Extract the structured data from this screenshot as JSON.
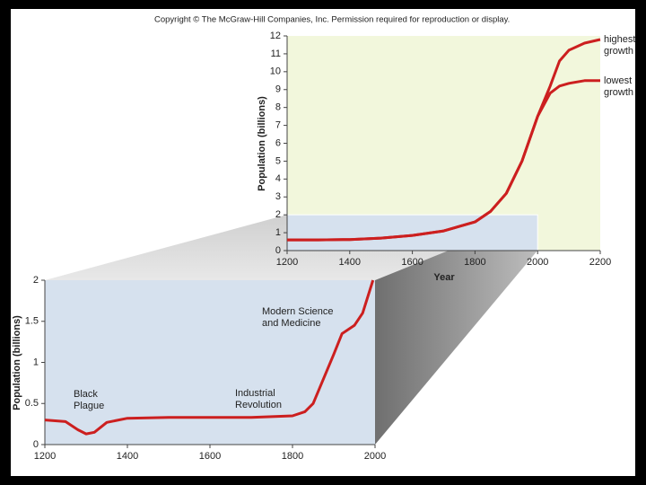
{
  "copyright": "Copyright © The McGraw-Hill Companies, Inc. Permission required for reproduction or display.",
  "chart_data": [
    {
      "type": "line",
      "xlabel": "Year",
      "ylabel": "Population (billions)",
      "x": [
        1200,
        1300,
        1400,
        1500,
        1600,
        1700,
        1800,
        1850,
        1900,
        1950,
        2000,
        2040,
        2070,
        2100,
        2150,
        2200
      ],
      "series": [
        {
          "name": "highest growth",
          "color": "#cc1f1f",
          "values": [
            0.6,
            0.6,
            0.62,
            0.7,
            0.85,
            1.1,
            1.6,
            2.2,
            3.2,
            5,
            7.5,
            9.2,
            10.6,
            11.2,
            11.6,
            11.8
          ]
        },
        {
          "name": "lowest growth",
          "color": "#cc1f1f",
          "values": [
            0.6,
            0.6,
            0.62,
            0.7,
            0.85,
            1.1,
            1.6,
            2.2,
            3.2,
            5,
            7.5,
            8.8,
            9.2,
            9.35,
            9.5,
            9.5
          ]
        }
      ],
      "xlim": [
        1200,
        2200
      ],
      "xticks": [
        1200,
        1400,
        1600,
        1800,
        2000,
        2200
      ],
      "ylim": [
        0,
        12
      ],
      "yticks": [
        0,
        1,
        2,
        3,
        4,
        5,
        6,
        7,
        8,
        9,
        10,
        11,
        12
      ]
    },
    {
      "type": "line",
      "ylabel": "Population (billions)",
      "color": "#cc1f1f",
      "x": [
        1200,
        1250,
        1280,
        1300,
        1320,
        1350,
        1400,
        1500,
        1600,
        1700,
        1800,
        1830,
        1850,
        1900,
        1920,
        1950,
        1970,
        1995
      ],
      "values": [
        0.3,
        0.28,
        0.18,
        0.13,
        0.15,
        0.27,
        0.32,
        0.33,
        0.33,
        0.33,
        0.35,
        0.4,
        0.5,
        1.1,
        1.35,
        1.45,
        1.6,
        2.0
      ],
      "annotations": [
        "Black Plague",
        "Industrial Revolution",
        "Modern Science and Medicine"
      ],
      "xlim": [
        1200,
        2000
      ],
      "xticks": [
        1200,
        1400,
        1600,
        1800,
        2000
      ],
      "ylim": [
        0,
        2
      ],
      "yticks": [
        0,
        0.5,
        1,
        1.5,
        2
      ]
    }
  ]
}
